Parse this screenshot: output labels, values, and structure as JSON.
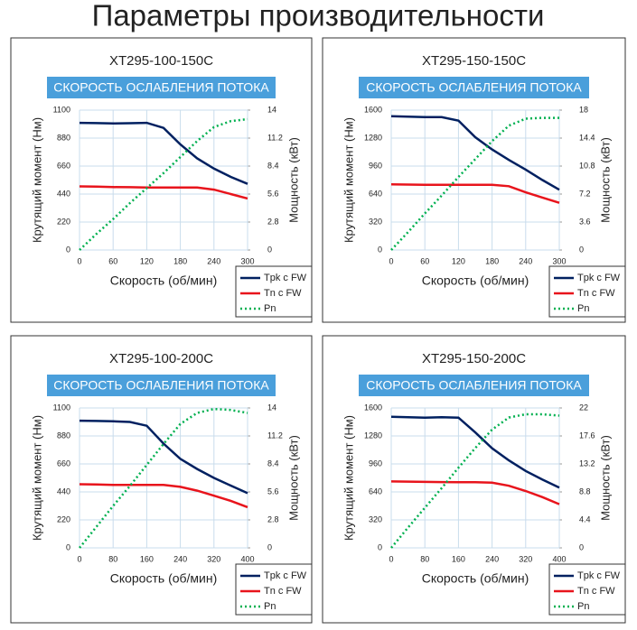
{
  "title": "Параметры производительности",
  "chart_data": [
    {
      "type": "line",
      "title": "XT295-100-150C",
      "subtitle": "СКОРОСТЬ ОСЛАБЛЕНИЯ ПОТОКА",
      "xlabel": "Скорость (об/мин)",
      "ylabel": "Крутящий момент (Нм)",
      "y2label": "Мощность (кВт)",
      "x": [
        0,
        30,
        60,
        90,
        120,
        150,
        180,
        210,
        240,
        270,
        300
      ],
      "xlim": [
        0,
        300
      ],
      "xticks": [
        0,
        60,
        120,
        180,
        240,
        300
      ],
      "ylim": [
        0,
        1100
      ],
      "yticks": [
        0,
        220,
        440,
        660,
        880,
        1100
      ],
      "y2lim": [
        0,
        14
      ],
      "y2ticks": [
        0,
        2.8,
        5.6,
        8.4,
        11.2,
        14
      ],
      "grid": true,
      "series": [
        {
          "name": "Tpk с FW",
          "color": "#002060",
          "values": [
            1000,
            998,
            995,
            997,
            1000,
            960,
            830,
            720,
            640,
            575,
            520
          ]
        },
        {
          "name": "Tn с FW",
          "color": "#e8141c",
          "values": [
            500,
            498,
            495,
            494,
            492,
            492,
            492,
            492,
            475,
            440,
            405
          ]
        },
        {
          "name": "Pn",
          "color": "#00b050",
          "axis": "y2",
          "dashed": true,
          "values": [
            0,
            1.6,
            3.1,
            4.7,
            6.2,
            7.7,
            9.3,
            10.9,
            12.3,
            12.9,
            13.1
          ]
        }
      ]
    },
    {
      "type": "line",
      "title": "XT295-150-150C",
      "subtitle": "СКОРОСТЬ ОСЛАБЛЕНИЯ ПОТОКА",
      "xlabel": "Скорость (об/мин)",
      "ylabel": "Крутящий момент (Нм)",
      "y2label": "Мощность (кВт)",
      "x": [
        0,
        30,
        60,
        90,
        120,
        150,
        180,
        210,
        240,
        270,
        300
      ],
      "xlim": [
        0,
        300
      ],
      "xticks": [
        0,
        60,
        120,
        180,
        240,
        300
      ],
      "ylim": [
        0,
        1600
      ],
      "yticks": [
        0,
        320,
        640,
        960,
        1280,
        1600
      ],
      "y2lim": [
        0,
        18
      ],
      "y2ticks": [
        0,
        3.6,
        7.2,
        10.8,
        14.4,
        18
      ],
      "grid": true,
      "series": [
        {
          "name": "Tpk с FW",
          "color": "#002060",
          "values": [
            1530,
            1525,
            1520,
            1520,
            1480,
            1290,
            1150,
            1030,
            920,
            800,
            690
          ]
        },
        {
          "name": "Tn с FW",
          "color": "#e8141c",
          "values": [
            750,
            748,
            745,
            745,
            745,
            745,
            745,
            730,
            660,
            600,
            540
          ]
        },
        {
          "name": "Pn",
          "color": "#00b050",
          "axis": "y2",
          "dashed": true,
          "values": [
            0,
            2.3,
            4.7,
            7.0,
            9.4,
            11.7,
            14.0,
            16.0,
            16.9,
            17.0,
            17.0
          ]
        }
      ]
    },
    {
      "type": "line",
      "title": "XT295-100-200C",
      "subtitle": "СКОРОСТЬ ОСЛАБЛЕНИЯ ПОТОКА",
      "xlabel": "Скорость (об/мин)",
      "ylabel": "Крутящий момент (Нм)",
      "y2label": "Мощность (кВт)",
      "x": [
        0,
        40,
        80,
        120,
        160,
        200,
        240,
        280,
        320,
        360,
        400
      ],
      "xlim": [
        0,
        400
      ],
      "xticks": [
        0,
        80,
        160,
        240,
        320,
        400
      ],
      "ylim": [
        0,
        1100
      ],
      "yticks": [
        0,
        220,
        440,
        660,
        880,
        1100
      ],
      "y2lim": [
        0,
        14
      ],
      "y2ticks": [
        0,
        2.8,
        5.6,
        8.4,
        11.2,
        14
      ],
      "grid": true,
      "series": [
        {
          "name": "Tpk с FW",
          "color": "#002060",
          "values": [
            1000,
            998,
            995,
            990,
            960,
            820,
            700,
            620,
            550,
            490,
            430
          ]
        },
        {
          "name": "Tn с FW",
          "color": "#e8141c",
          "values": [
            500,
            498,
            495,
            495,
            495,
            495,
            480,
            450,
            410,
            370,
            320
          ]
        },
        {
          "name": "Pn",
          "color": "#00b050",
          "axis": "y2",
          "dashed": true,
          "values": [
            0,
            2.1,
            4.2,
            6.2,
            8.3,
            10.4,
            12.4,
            13.5,
            13.9,
            13.8,
            13.5
          ]
        }
      ]
    },
    {
      "type": "line",
      "title": "XT295-150-200C",
      "subtitle": "СКОРОСТЬ ОСЛАБЛЕНИЯ ПОТОКА",
      "xlabel": "Скорость (об/мин)",
      "ylabel": "Крутящий момент (Нм)",
      "y2label": "Мощность (кВт)",
      "x": [
        0,
        40,
        80,
        120,
        160,
        200,
        240,
        280,
        320,
        360,
        400
      ],
      "xlim": [
        0,
        400
      ],
      "xticks": [
        0,
        80,
        160,
        240,
        320,
        400
      ],
      "ylim": [
        0,
        1600
      ],
      "yticks": [
        0,
        320,
        640,
        960,
        1280,
        1600
      ],
      "y2lim": [
        0,
        22
      ],
      "y2ticks": [
        0,
        4.4,
        8.8,
        13.2,
        17.6,
        22
      ],
      "grid": true,
      "series": [
        {
          "name": "Tpk с FW",
          "color": "#002060",
          "values": [
            1500,
            1495,
            1490,
            1495,
            1490,
            1320,
            1140,
            1000,
            880,
            780,
            690
          ]
        },
        {
          "name": "Tn с FW",
          "color": "#e8141c",
          "values": [
            760,
            758,
            755,
            752,
            750,
            750,
            745,
            710,
            650,
            580,
            500
          ]
        },
        {
          "name": "Pn",
          "color": "#00b050",
          "axis": "y2",
          "dashed": true,
          "values": [
            0,
            3.2,
            6.3,
            9.4,
            12.6,
            15.7,
            18.6,
            20.5,
            21.0,
            21.0,
            20.8
          ]
        }
      ]
    }
  ]
}
